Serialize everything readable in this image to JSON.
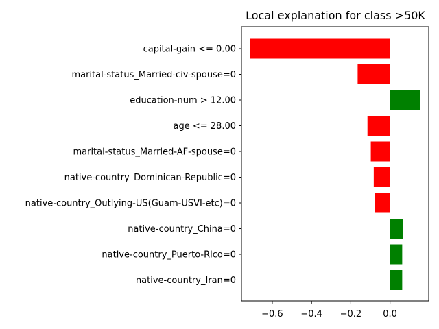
{
  "chart_data": {
    "type": "bar",
    "orientation": "horizontal",
    "title": "Local explanation for class >50K",
    "xlabel": "",
    "ylabel": "",
    "xlim": [
      -0.757,
      0.197
    ],
    "xticks": [
      -0.6,
      -0.4,
      -0.2,
      0.0
    ],
    "xtick_labels": [
      "−0.6",
      "−0.4",
      "−0.2",
      "0.0"
    ],
    "grid": false,
    "categories": [
      "capital-gain <= 0.00",
      "marital-status_Married-civ-spouse=0",
      "education-num > 12.00",
      "age <= 28.00",
      "marital-status_Married-AF-spouse=0",
      "native-country_Dominican-Republic=0",
      "native-country_Outlying-US(Guam-USVI-etc)=0",
      "native-country_China=0",
      "native-country_Puerto-Rico=0",
      "native-country_Iran=0"
    ],
    "values": [
      -0.715,
      -0.165,
      0.155,
      -0.115,
      -0.098,
      -0.083,
      -0.076,
      0.067,
      0.062,
      0.062
    ],
    "colors": {
      "positive": "#008000",
      "negative": "#ff0000"
    }
  }
}
